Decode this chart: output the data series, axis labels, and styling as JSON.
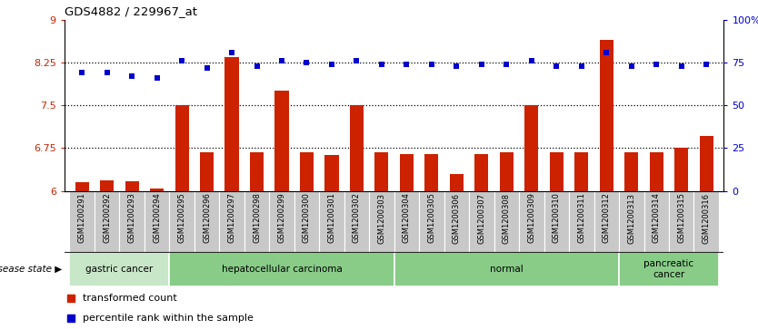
{
  "title": "GDS4882 / 229967_at",
  "samples": [
    "GSM1200291",
    "GSM1200292",
    "GSM1200293",
    "GSM1200294",
    "GSM1200295",
    "GSM1200296",
    "GSM1200297",
    "GSM1200298",
    "GSM1200299",
    "GSM1200300",
    "GSM1200301",
    "GSM1200302",
    "GSM1200303",
    "GSM1200304",
    "GSM1200305",
    "GSM1200306",
    "GSM1200307",
    "GSM1200308",
    "GSM1200309",
    "GSM1200310",
    "GSM1200311",
    "GSM1200312",
    "GSM1200313",
    "GSM1200314",
    "GSM1200315",
    "GSM1200316"
  ],
  "transformed_count": [
    6.15,
    6.18,
    6.16,
    6.04,
    7.5,
    6.68,
    8.35,
    6.67,
    7.75,
    6.68,
    6.63,
    7.5,
    6.67,
    6.65,
    6.65,
    6.3,
    6.65,
    6.68,
    7.5,
    6.67,
    6.67,
    8.65,
    6.67,
    6.67,
    6.75,
    6.97
  ],
  "percentile_rank": [
    69,
    69,
    67,
    66,
    76,
    72,
    81,
    73,
    76,
    75,
    74,
    76,
    74,
    74,
    74,
    73,
    74,
    74,
    76,
    73,
    73,
    81,
    73,
    74,
    73,
    74
  ],
  "bar_color": "#cc2200",
  "dot_color": "#0000cc",
  "ylim_left": [
    6,
    9
  ],
  "ylim_right": [
    0,
    100
  ],
  "yticks_left": [
    6,
    6.75,
    7.5,
    8.25,
    9
  ],
  "ytick_labels_left": [
    "6",
    "6.75",
    "7.5",
    "8.25",
    "9"
  ],
  "yticks_right": [
    0,
    25,
    50,
    75,
    100
  ],
  "ytick_labels_right": [
    "0",
    "25",
    "50",
    "75",
    "100%"
  ],
  "grid_values": [
    6.75,
    7.5,
    8.25
  ],
  "disease_groups": [
    {
      "label": "gastric cancer",
      "start": 0,
      "end": 4,
      "color": "#c8e6c8"
    },
    {
      "label": "hepatocellular carcinoma",
      "start": 4,
      "end": 13,
      "color": "#88cc88"
    },
    {
      "label": "normal",
      "start": 13,
      "end": 22,
      "color": "#88cc88"
    },
    {
      "label": "pancreatic\ncancer",
      "start": 22,
      "end": 26,
      "color": "#88cc88"
    }
  ],
  "disease_state_label": "disease state",
  "legend_red_label": "transformed count",
  "legend_blue_label": "percentile rank within the sample",
  "bar_width": 0.55
}
